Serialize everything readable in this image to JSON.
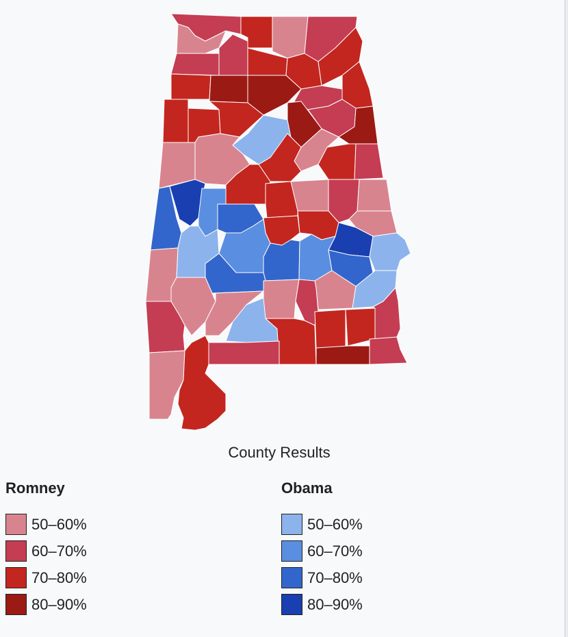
{
  "map": {
    "name": "Alabama county results",
    "colors": {
      "rom50": "#d8848f",
      "rom60": "#c43d52",
      "rom70": "#c3261f",
      "rom80": "#9b1a14",
      "oba50": "#8db3ec",
      "oba60": "#5a8ee0",
      "oba70": "#3366cc",
      "oba80": "#1a3fb0"
    }
  },
  "caption": "County Results",
  "legend": {
    "romney": {
      "title": "Romney",
      "items": [
        {
          "label": "50–60%",
          "color": "#d8848f"
        },
        {
          "label": "60–70%",
          "color": "#c43d52"
        },
        {
          "label": "70–80%",
          "color": "#c3261f"
        },
        {
          "label": "80–90%",
          "color": "#9b1a14"
        }
      ]
    },
    "obama": {
      "title": "Obama",
      "items": [
        {
          "label": "50–60%",
          "color": "#8db3ec"
        },
        {
          "label": "60–70%",
          "color": "#5a8ee0"
        },
        {
          "label": "70–80%",
          "color": "#3366cc"
        },
        {
          "label": "80–90%",
          "color": "#1a3fb0"
        }
      ]
    }
  }
}
